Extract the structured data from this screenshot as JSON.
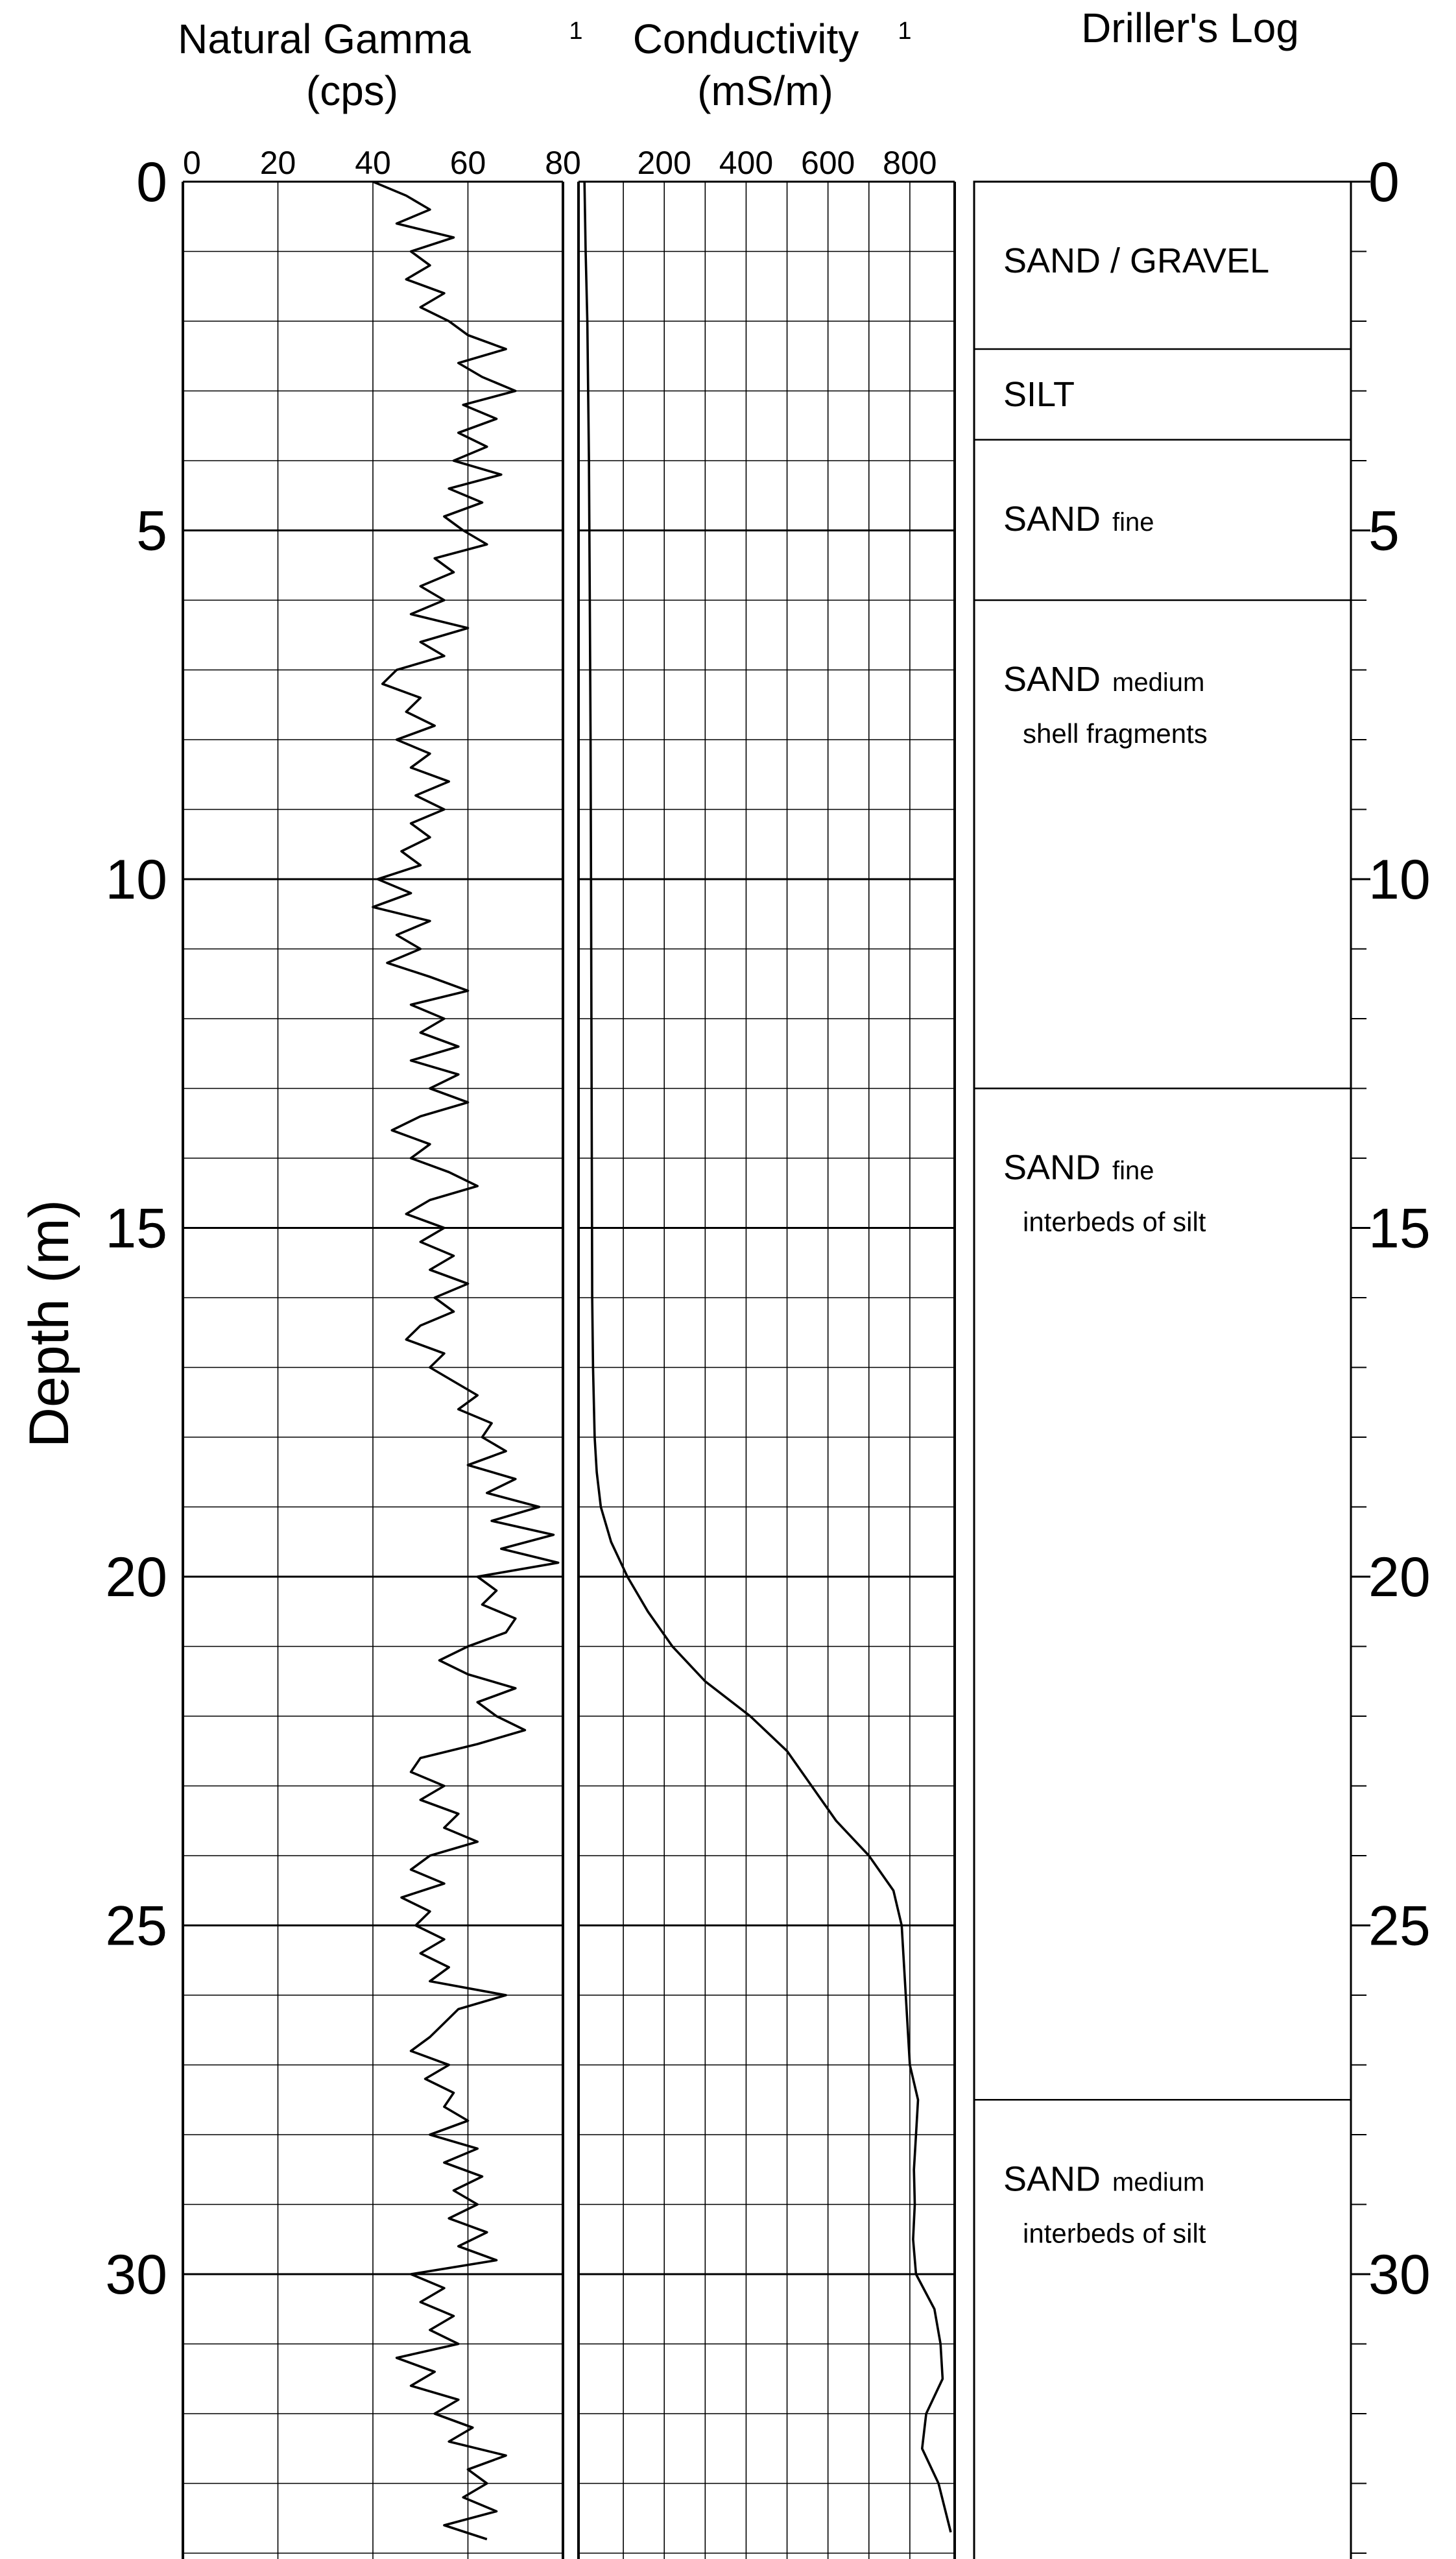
{
  "page_data_note": "",
  "chart_data": {
    "type": "line",
    "ylabel": "Depth (m)",
    "depth_range": [
      0,
      34
    ],
    "depth_ticks": [
      "0",
      "5",
      "10",
      "15",
      "20",
      "25",
      "30"
    ],
    "gamma": {
      "title": "Natural Gamma",
      "superscript": "1",
      "unit": "(cps)",
      "xlim": [
        0,
        80
      ],
      "ticks": [
        "0",
        "20",
        "40",
        "60",
        "80"
      ],
      "series": {
        "depth": [
          0,
          0.2,
          0.4,
          0.6,
          0.8,
          1.0,
          1.2,
          1.4,
          1.6,
          1.8,
          2.0,
          2.2,
          2.4,
          2.6,
          2.8,
          3.0,
          3.2,
          3.4,
          3.6,
          3.8,
          4.0,
          4.2,
          4.4,
          4.6,
          4.8,
          5.0,
          5.2,
          5.4,
          5.6,
          5.8,
          6.0,
          6.2,
          6.4,
          6.6,
          6.8,
          7.0,
          7.2,
          7.4,
          7.6,
          7.8,
          8.0,
          8.2,
          8.4,
          8.6,
          8.8,
          9.0,
          9.2,
          9.4,
          9.6,
          9.8,
          10.0,
          10.2,
          10.4,
          10.6,
          10.8,
          11.0,
          11.2,
          11.4,
          11.6,
          11.8,
          12.0,
          12.2,
          12.4,
          12.6,
          12.8,
          13.0,
          13.2,
          13.4,
          13.6,
          13.8,
          14.0,
          14.2,
          14.4,
          14.6,
          14.8,
          15.0,
          15.2,
          15.4,
          15.6,
          15.8,
          16.0,
          16.2,
          16.4,
          16.6,
          16.8,
          17.0,
          17.2,
          17.4,
          17.6,
          17.8,
          18.0,
          18.2,
          18.4,
          18.6,
          18.8,
          19.0,
          19.2,
          19.4,
          19.6,
          19.8,
          20.0,
          20.2,
          20.4,
          20.6,
          20.8,
          21.0,
          21.2,
          21.4,
          21.6,
          21.8,
          22.0,
          22.2,
          22.4,
          22.6,
          22.8,
          23.0,
          23.2,
          23.4,
          23.6,
          23.8,
          24.0,
          24.2,
          24.4,
          24.6,
          24.8,
          25.0,
          25.2,
          25.4,
          25.6,
          25.8,
          26.0,
          26.2,
          26.4,
          26.6,
          26.8,
          27.0,
          27.2,
          27.4,
          27.6,
          27.8,
          28.0,
          28.2,
          28.4,
          28.6,
          28.8,
          29.0,
          29.2,
          29.4,
          29.6,
          29.8,
          30.0,
          30.2,
          30.4,
          30.6,
          30.8,
          31.0,
          31.2,
          31.4,
          31.6,
          31.8,
          32.0,
          32.2,
          32.4,
          32.6,
          32.8,
          33.0,
          33.2,
          33.4,
          33.6,
          33.8
        ],
        "value": [
          40,
          47,
          52,
          45,
          57,
          48,
          52,
          47,
          55,
          50,
          56,
          60,
          68,
          58,
          63,
          70,
          59,
          66,
          58,
          64,
          57,
          67,
          56,
          63,
          55,
          59,
          64,
          53,
          57,
          50,
          55,
          48,
          60,
          50,
          55,
          45,
          42,
          50,
          47,
          53,
          45,
          52,
          48,
          56,
          49,
          55,
          48,
          52,
          46,
          50,
          41,
          48,
          40,
          52,
          45,
          50,
          43,
          52,
          60,
          48,
          55,
          50,
          58,
          48,
          58,
          52,
          60,
          50,
          44,
          52,
          48,
          56,
          62,
          52,
          47,
          55,
          50,
          57,
          52,
          60,
          53,
          57,
          50,
          47,
          55,
          52,
          57,
          62,
          58,
          65,
          63,
          68,
          60,
          70,
          64,
          75,
          65,
          78,
          67,
          79,
          62,
          66,
          63,
          70,
          68,
          60,
          54,
          60,
          70,
          62,
          66,
          72,
          62,
          50,
          48,
          55,
          50,
          58,
          55,
          62,
          52,
          48,
          55,
          46,
          52,
          49,
          55,
          50,
          56,
          52,
          68,
          58,
          55,
          52,
          48,
          56,
          51,
          57,
          55,
          60,
          52,
          62,
          55,
          63,
          57,
          62,
          56,
          64,
          58,
          66,
          48,
          55,
          50,
          57,
          52,
          58,
          45,
          53,
          48,
          58,
          53,
          61,
          56,
          68,
          60,
          64,
          59,
          66,
          55,
          64
        ],
        "values_per_depth_m": 5
      }
    },
    "conductivity": {
      "title": "Conductivity",
      "superscript": "1",
      "unit": "(mS/m)",
      "xlim": [
        0,
        900
      ],
      "ticks": [
        "200",
        "400",
        "600",
        "800"
      ],
      "tick_values": [
        200,
        400,
        600,
        800
      ],
      "series": {
        "depth": [
          0,
          1,
          2,
          4,
          6,
          8,
          10,
          12,
          14,
          16,
          17,
          18,
          18.5,
          19,
          19.5,
          20,
          20.5,
          21,
          21.5,
          22,
          22.5,
          23,
          23.5,
          24,
          24.5,
          25,
          26,
          27,
          27.5,
          28,
          28.5,
          29,
          29.5,
          30,
          30.5,
          31,
          31.5,
          32,
          32.5,
          33,
          33.7
        ],
        "value": [
          5,
          8,
          12,
          16,
          18,
          20,
          21,
          22,
          23,
          24,
          26,
          30,
          35,
          45,
          70,
          110,
          160,
          220,
          300,
          410,
          500,
          560,
          620,
          700,
          760,
          780,
          790,
          800,
          820,
          815,
          810,
          812,
          808,
          815,
          860,
          875,
          880,
          840,
          830,
          870,
          900
        ]
      }
    },
    "drillers_log": {
      "title": "Driller's Log",
      "depth_ticks": [
        "0",
        "5",
        "10",
        "15",
        "20",
        "25",
        "30"
      ],
      "units": [
        {
          "top": 0,
          "bottom": 2.4,
          "name": "SAND / GRAVEL",
          "detail": "",
          "detail2": ""
        },
        {
          "top": 2.4,
          "bottom": 3.7,
          "name": "SILT",
          "detail": "",
          "detail2": ""
        },
        {
          "top": 3.7,
          "bottom": 6.0,
          "name": "SAND",
          "detail": "fine",
          "detail2": ""
        },
        {
          "top": 6.0,
          "bottom": 13.0,
          "name": "SAND",
          "detail": "medium",
          "detail2": "shell fragments"
        },
        {
          "top": 13.0,
          "bottom": 27.5,
          "name": "SAND",
          "detail": "fine",
          "detail2": "interbeds of silt"
        },
        {
          "top": 27.5,
          "bottom": 34.0,
          "name": "SAND",
          "detail": "medium",
          "detail2": "interbeds of silt"
        }
      ]
    }
  }
}
